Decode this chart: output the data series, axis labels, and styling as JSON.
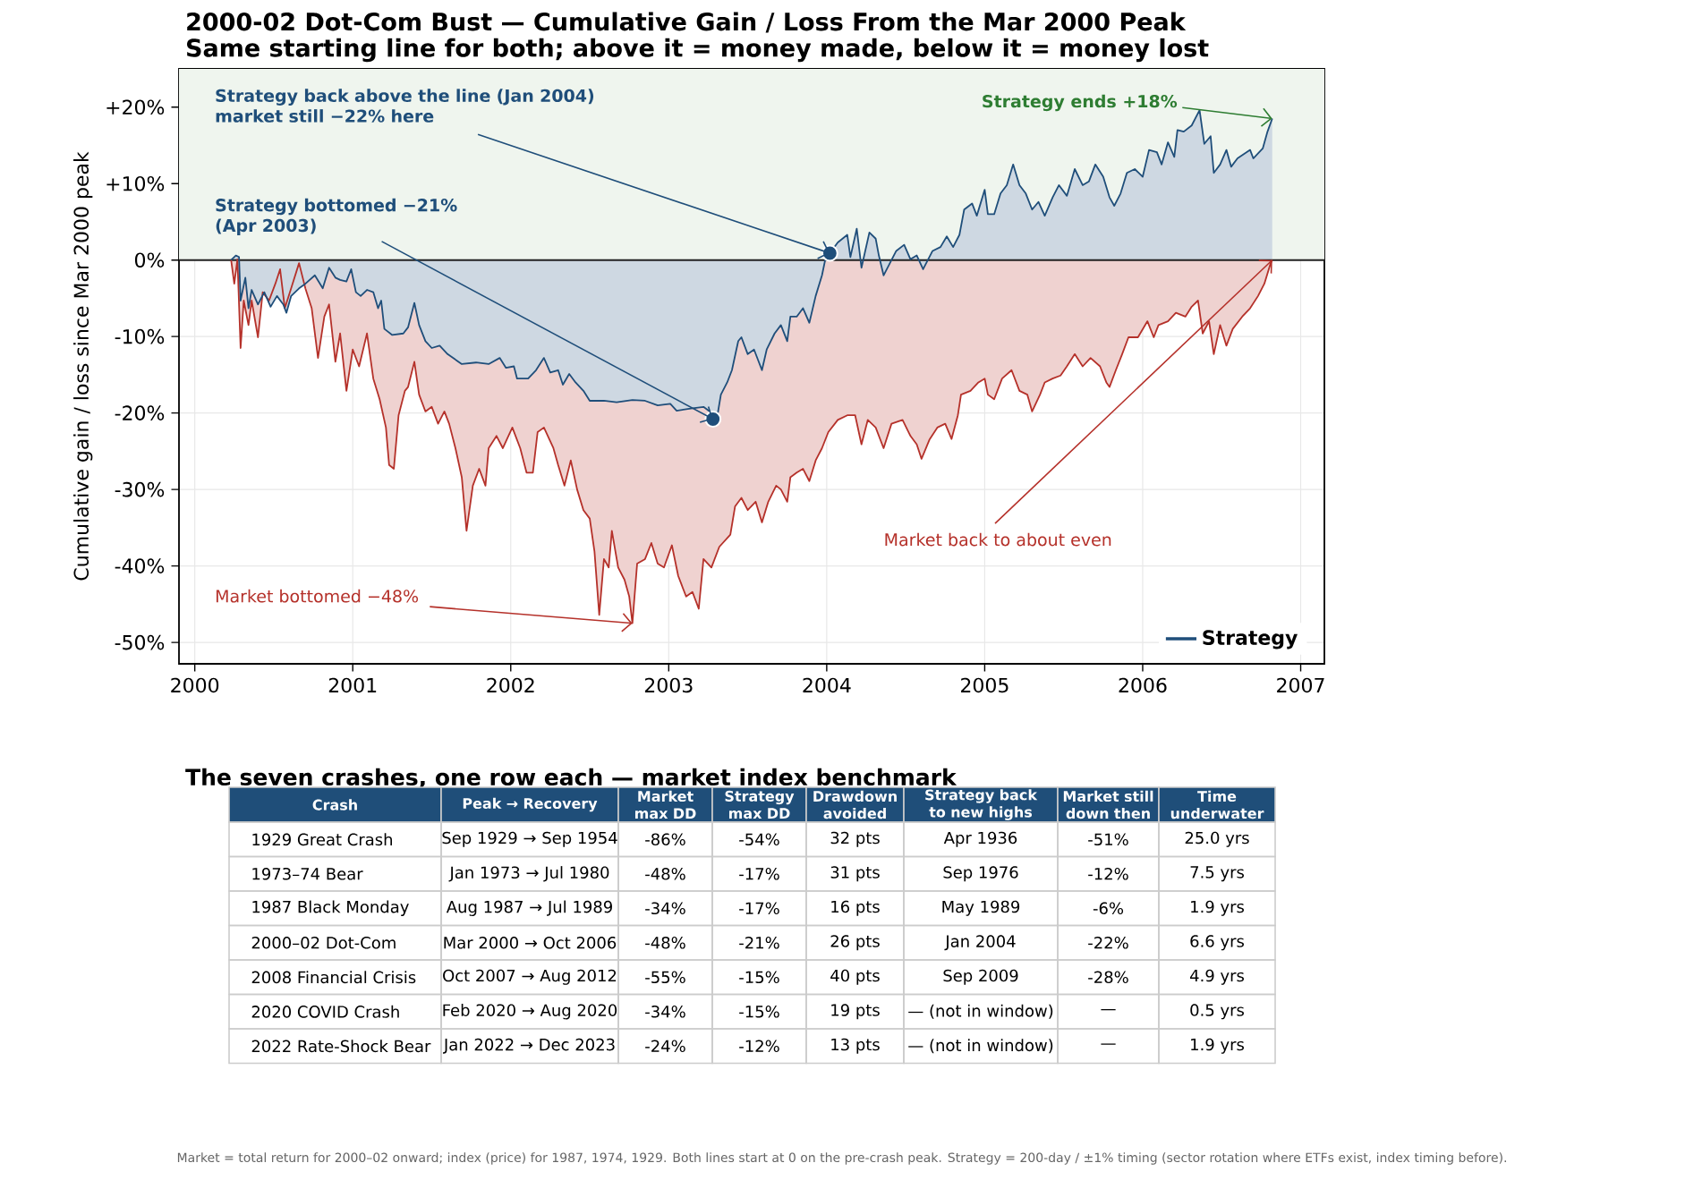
{
  "chart_data": [
    {
      "type": "line",
      "title": "2000-02 Dot-Com Bust — Cumulative Gain / Loss From the Mar 2000 Peak",
      "subtitle": "Same starting line for both; above it = money made, below it = money lost",
      "ylabel": "Cumulative gain / loss since Mar 2000 peak",
      "xlim": [
        1999.9,
        2007.15
      ],
      "ylim": [
        -52.8,
        25
      ],
      "xticks": [
        2000,
        2001,
        2002,
        2003,
        2004,
        2005,
        2006,
        2007
      ],
      "yticks": [
        {
          "value": -50,
          "label": "-50%"
        },
        {
          "value": -40,
          "label": "-40%"
        },
        {
          "value": -30,
          "label": "-30%"
        },
        {
          "value": -20,
          "label": "-20%"
        },
        {
          "value": -10,
          "label": "-10%"
        },
        {
          "value": 0,
          "label": "0%"
        },
        {
          "value": 10,
          "label": "+10%"
        },
        {
          "value": 20,
          "label": "+20%"
        }
      ],
      "grid": true,
      "legend": "bottom right",
      "bands": [
        {
          "axis": "y",
          "from": 0,
          "to": 25,
          "color": "#eff5ee"
        }
      ],
      "ref_lines": [
        {
          "axis": "y",
          "value": 0,
          "color": "#222222"
        }
      ],
      "series": [
        {
          "type": "area",
          "color": "#b5312a",
          "x": [
            2000.23,
            2000.25,
            2000.27,
            2000.29,
            2000.31,
            2000.34,
            2000.36,
            2000.4,
            2000.43,
            2000.47,
            2000.51,
            2000.54,
            2000.57,
            2000.61,
            2000.66,
            2000.7,
            2000.74,
            2000.78,
            2000.82,
            2000.85,
            2000.89,
            2000.92,
            2000.96,
            2001.0,
            2001.04,
            2001.09,
            2001.13,
            2001.17,
            2001.21,
            2001.23,
            2001.26,
            2001.29,
            2001.33,
            2001.35,
            2001.39,
            2001.42,
            2001.46,
            2001.5,
            2001.54,
            2001.58,
            2001.61,
            2001.65,
            2001.69,
            2001.72,
            2001.76,
            2001.8,
            2001.84,
            2001.86,
            2001.91,
            2001.95,
            2002.01,
            2002.06,
            2002.1,
            2002.14,
            2002.17,
            2002.21,
            2002.27,
            2002.3,
            2002.34,
            2002.38,
            2002.42,
            2002.46,
            2002.5,
            2002.53,
            2002.56,
            2002.59,
            2002.62,
            2002.64,
            2002.68,
            2002.72,
            2002.75,
            2002.77,
            2002.8,
            2002.85,
            2002.89,
            2002.93,
            2002.97,
            2003.02,
            2003.06,
            2003.11,
            2003.15,
            2003.19,
            2003.22,
            2003.27,
            2003.32,
            2003.39,
            2003.42,
            2003.46,
            2003.5,
            2003.55,
            2003.59,
            2003.63,
            2003.68,
            2003.71,
            2003.75,
            2003.77,
            2003.81,
            2003.85,
            2003.89,
            2003.93,
            2003.97,
            2004.01,
            2004.07,
            2004.13,
            2004.18,
            2004.22,
            2004.26,
            2004.31,
            2004.36,
            2004.41,
            2004.48,
            2004.53,
            2004.57,
            2004.6,
            2004.65,
            2004.7,
            2004.75,
            2004.79,
            2004.83,
            2004.85,
            2004.91,
            2004.96,
            2005.0,
            2005.02,
            2005.06,
            2005.11,
            2005.17,
            2005.22,
            2005.27,
            2005.3,
            2005.35,
            2005.38,
            2005.43,
            2005.48,
            2005.52,
            2005.57,
            2005.62,
            2005.67,
            2005.73,
            2005.77,
            2005.79,
            2005.83,
            2005.87,
            2005.91,
            2005.97,
            2006.03,
            2006.07,
            2006.1,
            2006.16,
            2006.21,
            2006.27,
            2006.31,
            2006.35,
            2006.38,
            2006.42,
            2006.45,
            2006.49,
            2006.53,
            2006.57,
            2006.63,
            2006.68,
            2006.73,
            2006.77,
            2006.81,
            2006.82
          ],
          "values": [
            0,
            -3.1,
            0.1,
            -11.5,
            -5.3,
            -8.5,
            -5.3,
            -10.1,
            -4.2,
            -5.3,
            -3.1,
            -1.2,
            -6.3,
            -3.7,
            -0.4,
            -3.7,
            -6.3,
            -12.8,
            -7.4,
            -5.8,
            -13.3,
            -9.6,
            -17.1,
            -11.7,
            -13.9,
            -9.6,
            -15.5,
            -18.2,
            -21.9,
            -26.8,
            -27.3,
            -20.3,
            -17.1,
            -16.6,
            -13.3,
            -17.6,
            -19.8,
            -19.2,
            -21.4,
            -19.8,
            -21.4,
            -24.6,
            -28.4,
            -35.4,
            -29.5,
            -27.3,
            -29.5,
            -24.6,
            -23.0,
            -24.6,
            -21.9,
            -24.6,
            -27.8,
            -27.8,
            -22.5,
            -21.9,
            -24.6,
            -26.8,
            -29.5,
            -26.2,
            -30.0,
            -32.7,
            -33.8,
            -38.1,
            -46.4,
            -39.1,
            -40.2,
            -35.4,
            -40.2,
            -41.8,
            -44.0,
            -47.5,
            -39.7,
            -39.1,
            -37.0,
            -39.7,
            -40.2,
            -37.3,
            -41.3,
            -44.0,
            -43.4,
            -45.6,
            -39.1,
            -40.2,
            -37.5,
            -35.9,
            -32.2,
            -31.1,
            -32.7,
            -31.6,
            -34.3,
            -31.6,
            -29.5,
            -30.0,
            -31.6,
            -28.4,
            -27.8,
            -27.3,
            -28.9,
            -26.2,
            -24.6,
            -22.5,
            -20.9,
            -20.3,
            -20.3,
            -24.1,
            -20.9,
            -21.9,
            -24.6,
            -21.4,
            -20.9,
            -23.0,
            -24.1,
            -26.0,
            -23.5,
            -21.9,
            -21.4,
            -23.4,
            -20.3,
            -17.6,
            -17.1,
            -16.0,
            -15.5,
            -17.6,
            -18.2,
            -15.5,
            -14.4,
            -17.1,
            -17.6,
            -19.8,
            -17.6,
            -16.0,
            -15.5,
            -15.1,
            -13.9,
            -12.3,
            -13.9,
            -12.8,
            -13.9,
            -16.0,
            -16.6,
            -14.4,
            -12.3,
            -10.1,
            -10.1,
            -8.0,
            -10.1,
            -8.5,
            -8.0,
            -6.9,
            -7.4,
            -6.1,
            -5.3,
            -9.6,
            -8.0,
            -12.3,
            -8.5,
            -11.2,
            -9.0,
            -7.4,
            -6.3,
            -4.7,
            -3.1,
            -0.4,
            0
          ]
        },
        {
          "name": "Strategy",
          "type": "area",
          "color": "#1f4e7a",
          "x": [
            2000.23,
            2000.26,
            2000.28,
            2000.29,
            2000.32,
            2000.34,
            2000.36,
            2000.4,
            2000.44,
            2000.48,
            2000.52,
            2000.56,
            2000.58,
            2000.61,
            2000.66,
            2000.7,
            2000.76,
            2000.81,
            2000.85,
            2000.89,
            2000.92,
            2000.96,
            2000.99,
            2001.02,
            2001.05,
            2001.09,
            2001.13,
            2001.16,
            2001.18,
            2001.2,
            2001.25,
            2001.32,
            2001.35,
            2001.39,
            2001.42,
            2001.46,
            2001.5,
            2001.55,
            2001.6,
            2001.69,
            2001.78,
            2001.86,
            2001.93,
            2001.97,
            2002.02,
            2002.04,
            2002.11,
            2002.16,
            2002.21,
            2002.25,
            2002.3,
            2002.33,
            2002.37,
            2002.41,
            2002.46,
            2002.5,
            2002.59,
            2002.67,
            2002.77,
            2002.85,
            2002.93,
            2003.01,
            2003.05,
            2003.14,
            2003.22,
            2003.26,
            2003.28,
            2003.31,
            2003.33,
            2003.37,
            2003.4,
            2003.44,
            2003.46,
            2003.5,
            2003.54,
            2003.59,
            2003.62,
            2003.67,
            2003.71,
            2003.75,
            2003.77,
            2003.81,
            2003.85,
            2003.89,
            2003.93,
            2003.97,
            2003.99,
            2004.02,
            2004.07,
            2004.13,
            2004.15,
            2004.19,
            2004.22,
            2004.27,
            2004.31,
            2004.33,
            2004.36,
            2004.4,
            2004.44,
            2004.49,
            2004.53,
            2004.57,
            2004.61,
            2004.67,
            2004.72,
            2004.76,
            2004.8,
            2004.84,
            2004.87,
            2004.92,
            2004.95,
            2005.0,
            2005.02,
            2005.06,
            2005.1,
            2005.14,
            2005.18,
            2005.22,
            2005.26,
            2005.3,
            2005.34,
            2005.38,
            2005.43,
            2005.47,
            2005.52,
            2005.57,
            2005.62,
            2005.66,
            2005.7,
            2005.75,
            2005.79,
            2005.82,
            2005.86,
            2005.9,
            2005.95,
            2006.0,
            2006.04,
            2006.09,
            2006.12,
            2006.16,
            2006.2,
            2006.22,
            2006.26,
            2006.31,
            2006.36,
            2006.39,
            2006.43,
            2006.45,
            2006.49,
            2006.53,
            2006.56,
            2006.6,
            2006.68,
            2006.7,
            2006.76,
            2006.79,
            2006.82
          ],
          "values": [
            0,
            0.6,
            0.4,
            -5.3,
            -2.3,
            -6.3,
            -3.9,
            -5.8,
            -4.2,
            -6.1,
            -4.7,
            -5.8,
            -6.9,
            -4.7,
            -3.7,
            -3.1,
            -2.0,
            -3.7,
            -1.0,
            -2.3,
            -2.6,
            -2.8,
            -1.2,
            -4.2,
            -4.7,
            -3.9,
            -4.2,
            -6.3,
            -5.3,
            -9.0,
            -9.8,
            -9.6,
            -8.8,
            -5.6,
            -8.5,
            -10.6,
            -11.5,
            -11.2,
            -12.3,
            -13.6,
            -13.4,
            -13.6,
            -12.8,
            -14.1,
            -13.9,
            -15.5,
            -15.5,
            -14.4,
            -12.8,
            -14.7,
            -14.4,
            -16.3,
            -14.9,
            -16.0,
            -17.1,
            -18.4,
            -18.4,
            -18.6,
            -18.3,
            -18.4,
            -19.0,
            -18.8,
            -19.7,
            -19.4,
            -19.2,
            -19.8,
            -20.8,
            -20.1,
            -17.6,
            -16.0,
            -14.4,
            -10.6,
            -10.1,
            -12.3,
            -11.7,
            -14.4,
            -11.7,
            -9.6,
            -8.5,
            -10.6,
            -7.4,
            -7.4,
            -6.3,
            -8.2,
            -4.7,
            -2.0,
            0,
            0.9,
            2.3,
            3.3,
            0.4,
            4.1,
            -1.0,
            3.6,
            2.8,
            0.6,
            -2.0,
            -0.4,
            1.2,
            2.0,
            0.1,
            0.6,
            -1.2,
            1.2,
            1.7,
            3.1,
            1.7,
            3.3,
            6.6,
            7.4,
            5.8,
            9.2,
            6.0,
            6.0,
            8.7,
            9.8,
            12.5,
            9.8,
            8.7,
            6.6,
            7.6,
            5.8,
            8.2,
            9.8,
            8.4,
            11.9,
            9.8,
            10.3,
            12.5,
            10.9,
            8.2,
            7.1,
            8.7,
            11.4,
            11.9,
            10.9,
            14.4,
            14.1,
            12.5,
            15.4,
            13.5,
            17.0,
            16.8,
            17.6,
            19.6,
            15.2,
            16.2,
            11.4,
            12.5,
            14.4,
            12.2,
            13.3,
            14.4,
            13.3,
            14.6,
            16.8,
            18.5
          ]
        }
      ],
      "annotations": [
        {
          "text": "Strategy back above the line (Jan 2004) market still −22% here",
          "x": 2004.02,
          "y": 0.9
        },
        {
          "text": "Strategy bottomed −21% (Apr 2003)",
          "x": 2003.28,
          "y": -20.8
        },
        {
          "text": "Market bottomed −48%",
          "x": 2002.77,
          "y": -47.5
        },
        {
          "text": "Market back to about even",
          "x": 2006.82,
          "y": 0
        },
        {
          "text": "Strategy ends +18%",
          "x": 2006.82,
          "y": 18.5
        },
        "Market = total return for 2000–02 onward; index (price) for 1987, 1974, 1929.  Both lines start at 0 on the pre-crash peak.  Strategy = 200-day / ±1% timing (sector rotation where ETFs exist, index timing before)."
      ]
    },
    {
      "type": "other",
      "title": "The seven crashes, one row each — market index benchmark",
      "categories": [
        "Crash",
        "Peak → Recovery",
        "Market max DD",
        "Strategy max DD",
        "Drawdown avoided",
        "Strategy back to new highs",
        "Market still down then",
        "Time underwater"
      ],
      "y_categories": [
        "1929 Great Crash",
        "1973–74 Bear",
        "1987 Black Monday",
        "2000–02 Dot-Com",
        "2008 Financial Crisis",
        "2020 COVID Crash",
        "2022 Rate-Shock Bear"
      ],
      "cell_labels": [
        [
          "Sep 1929 → Sep 1954",
          "-86%",
          "-54%",
          "32 pts",
          "Apr 1936",
          "-51%",
          "25.0 yrs"
        ],
        [
          "Jan 1973 → Jul 1980",
          "-48%",
          "-17%",
          "31 pts",
          "Sep 1976",
          "-12%",
          "7.5 yrs"
        ],
        [
          "Aug 1987 → Jul 1989",
          "-34%",
          "-17%",
          "16 pts",
          "May 1989",
          "-6%",
          "1.9 yrs"
        ],
        [
          "Mar 2000 → Oct 2006",
          "-48%",
          "-21%",
          "26 pts",
          "Jan 2004",
          "-22%",
          "6.6 yrs"
        ],
        [
          "Oct 2007 → Aug 2012",
          "-55%",
          "-15%",
          "40 pts",
          "Sep 2009",
          "-28%",
          "4.9 yrs"
        ],
        [
          "Feb 2020 → Aug 2020",
          "-34%",
          "-15%",
          "19 pts",
          "— (not in window)",
          "—",
          "0.5 yrs"
        ],
        [
          "Jan 2022 → Dec 2023",
          "-24%",
          "-12%",
          "13 pts",
          "— (not in window)",
          "—",
          "1.9 yrs"
        ]
      ]
    }
  ]
}
